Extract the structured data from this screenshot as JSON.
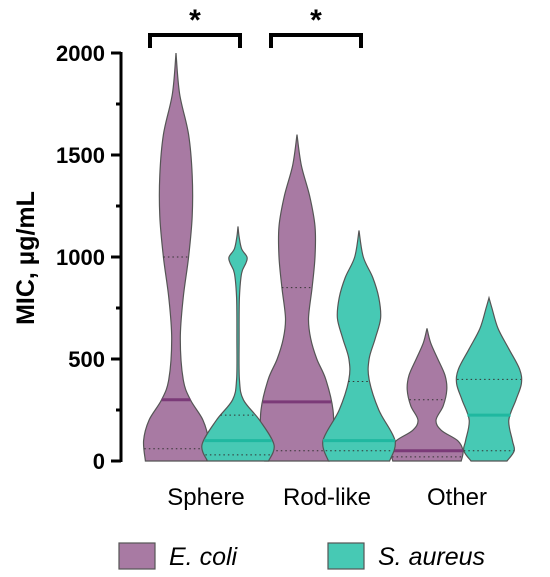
{
  "chart_data": {
    "type": "violin",
    "ylabel": "MIC, µg/mL",
    "ylim": [
      0,
      2000
    ],
    "yticks": [
      0,
      500,
      1000,
      1500,
      2000
    ],
    "categories": [
      "Sphere",
      "Rod-like",
      "Other"
    ],
    "series": [
      {
        "name": "E. coli",
        "color": "#a87aa3",
        "median_color": "#7b3a78",
        "groups": [
          {
            "category": "Sphere",
            "min": 0,
            "max": 2000,
            "q1": 60,
            "median": 300,
            "q3": 1000,
            "profile": [
              [
                0,
                0.85
              ],
              [
                100,
                0.9
              ],
              [
                200,
                0.75
              ],
              [
                300,
                0.4
              ],
              [
                400,
                0.2
              ],
              [
                600,
                0.12
              ],
              [
                800,
                0.2
              ],
              [
                1000,
                0.35
              ],
              [
                1200,
                0.45
              ],
              [
                1400,
                0.45
              ],
              [
                1600,
                0.35
              ],
              [
                1800,
                0.1
              ],
              [
                2000,
                0
              ]
            ]
          },
          {
            "category": "Rod-like",
            "min": 0,
            "max": 1600,
            "q1": 50,
            "median": 290,
            "q3": 850,
            "profile": [
              [
                0,
                0.9
              ],
              [
                100,
                1.0
              ],
              [
                250,
                1.0
              ],
              [
                400,
                0.8
              ],
              [
                500,
                0.55
              ],
              [
                600,
                0.38
              ],
              [
                700,
                0.32
              ],
              [
                850,
                0.42
              ],
              [
                1000,
                0.5
              ],
              [
                1150,
                0.5
              ],
              [
                1300,
                0.35
              ],
              [
                1450,
                0.12
              ],
              [
                1600,
                0
              ]
            ]
          },
          {
            "category": "Other",
            "min": 0,
            "max": 650,
            "q1": 20,
            "median": 50,
            "q3": 300,
            "profile": [
              [
                0,
                0.95
              ],
              [
                50,
                1.0
              ],
              [
                100,
                0.85
              ],
              [
                150,
                0.4
              ],
              [
                200,
                0.25
              ],
              [
                270,
                0.45
              ],
              [
                350,
                0.55
              ],
              [
                420,
                0.5
              ],
              [
                500,
                0.3
              ],
              [
                580,
                0.1
              ],
              [
                650,
                0
              ]
            ]
          }
        ]
      },
      {
        "name": "S. aureus",
        "color": "#47c9b4",
        "median_color": "#1fb8a0",
        "groups": [
          {
            "category": "Sphere",
            "min": 0,
            "max": 1150,
            "q1": 30,
            "median": 100,
            "q3": 225,
            "profile": [
              [
                0,
                0.85
              ],
              [
                80,
                1.0
              ],
              [
                200,
                0.6
              ],
              [
                300,
                0.15
              ],
              [
                400,
                0.04
              ],
              [
                600,
                0.03
              ],
              [
                800,
                0.04
              ],
              [
                920,
                0.1
              ],
              [
                970,
                0.22
              ],
              [
                1000,
                0.25
              ],
              [
                1040,
                0.1
              ],
              [
                1100,
                0.03
              ],
              [
                1150,
                0
              ]
            ]
          },
          {
            "category": "Rod-like",
            "min": 0,
            "max": 1130,
            "q1": 50,
            "median": 100,
            "q3": 390,
            "profile": [
              [
                0,
                0.85
              ],
              [
                100,
                1.0
              ],
              [
                250,
                0.55
              ],
              [
                400,
                0.28
              ],
              [
                500,
                0.28
              ],
              [
                600,
                0.45
              ],
              [
                700,
                0.6
              ],
              [
                800,
                0.55
              ],
              [
                900,
                0.38
              ],
              [
                1000,
                0.12
              ],
              [
                1130,
                0
              ]
            ]
          },
          {
            "category": "Other",
            "min": 0,
            "max": 800,
            "q1": 50,
            "median": 225,
            "q3": 400,
            "profile": [
              [
                0,
                0.5
              ],
              [
                50,
                0.7
              ],
              [
                100,
                0.65
              ],
              [
                200,
                0.55
              ],
              [
                300,
                0.75
              ],
              [
                380,
                0.9
              ],
              [
                450,
                0.85
              ],
              [
                550,
                0.55
              ],
              [
                650,
                0.25
              ],
              [
                750,
                0.08
              ],
              [
                800,
                0
              ]
            ]
          }
        ]
      }
    ],
    "significance": [
      {
        "group": "Sphere",
        "label": "*"
      },
      {
        "group": "Rod-like",
        "label": "*"
      }
    ],
    "legend_position": "bottom"
  }
}
